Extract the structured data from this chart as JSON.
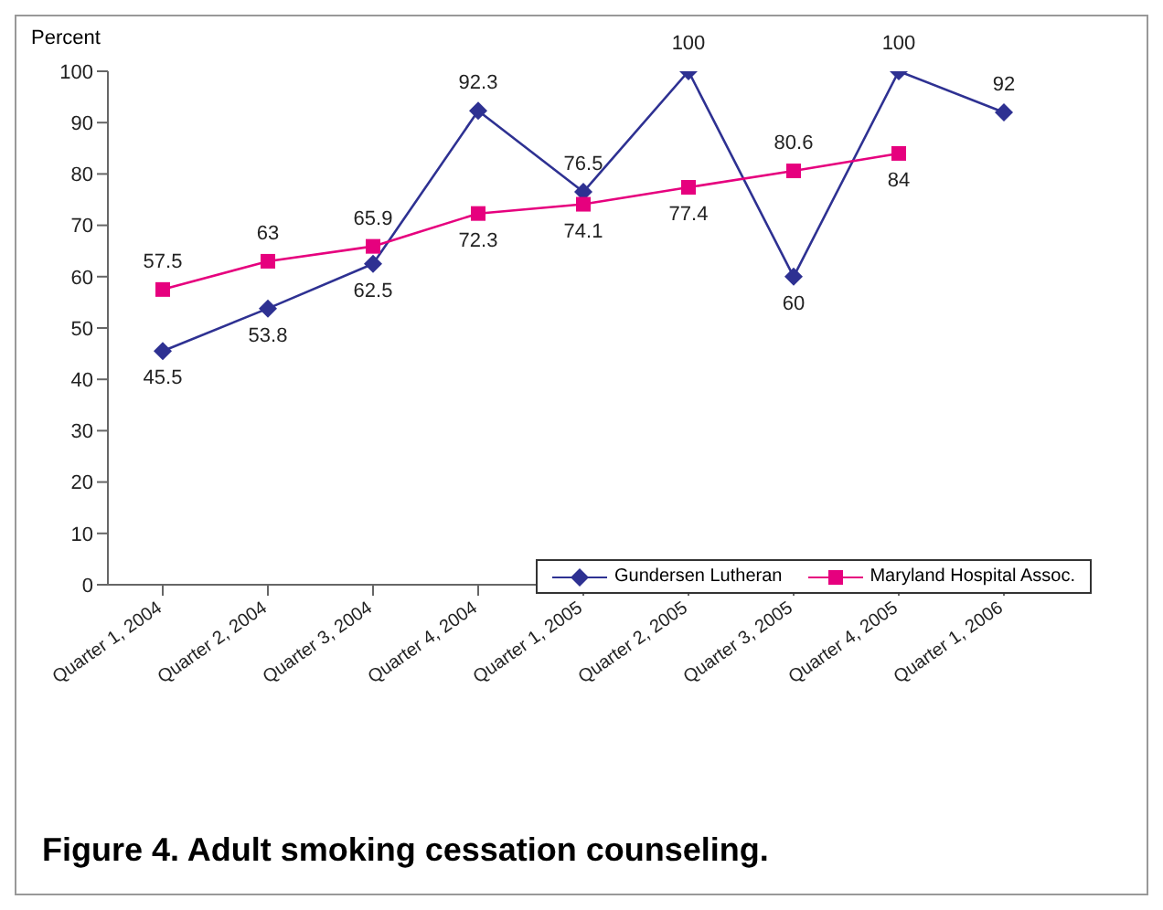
{
  "chart_data": {
    "type": "line",
    "title": "Figure 4.  Adult smoking cessation counseling.",
    "ylabel": "Percent",
    "categories": [
      "Quarter 1, 2004",
      "Quarter 2, 2004",
      "Quarter 3, 2004",
      "Quarter 4, 2004",
      "Quarter 1, 2005",
      "Quarter 2, 2005",
      "Quarter 3, 2005",
      "Quarter 4, 2005",
      "Quarter 1, 2006"
    ],
    "series": [
      {
        "name": "Gundersen Lutheran",
        "color": "#2e3192",
        "marker": "diamond",
        "values": [
          45.5,
          53.8,
          62.5,
          92.3,
          76.5,
          100,
          60,
          100,
          92
        ]
      },
      {
        "name": "Maryland Hospital Assoc.",
        "color": "#e6007e",
        "marker": "square",
        "values": [
          57.5,
          63,
          65.9,
          72.3,
          74.1,
          77.4,
          80.6,
          84,
          null
        ]
      }
    ],
    "ylim": [
      0,
      100
    ],
    "yticks": [
      0,
      10,
      20,
      30,
      40,
      50,
      60,
      70,
      80,
      90,
      100
    ],
    "grid": false,
    "legend": "bottom right",
    "data_labels": true
  }
}
